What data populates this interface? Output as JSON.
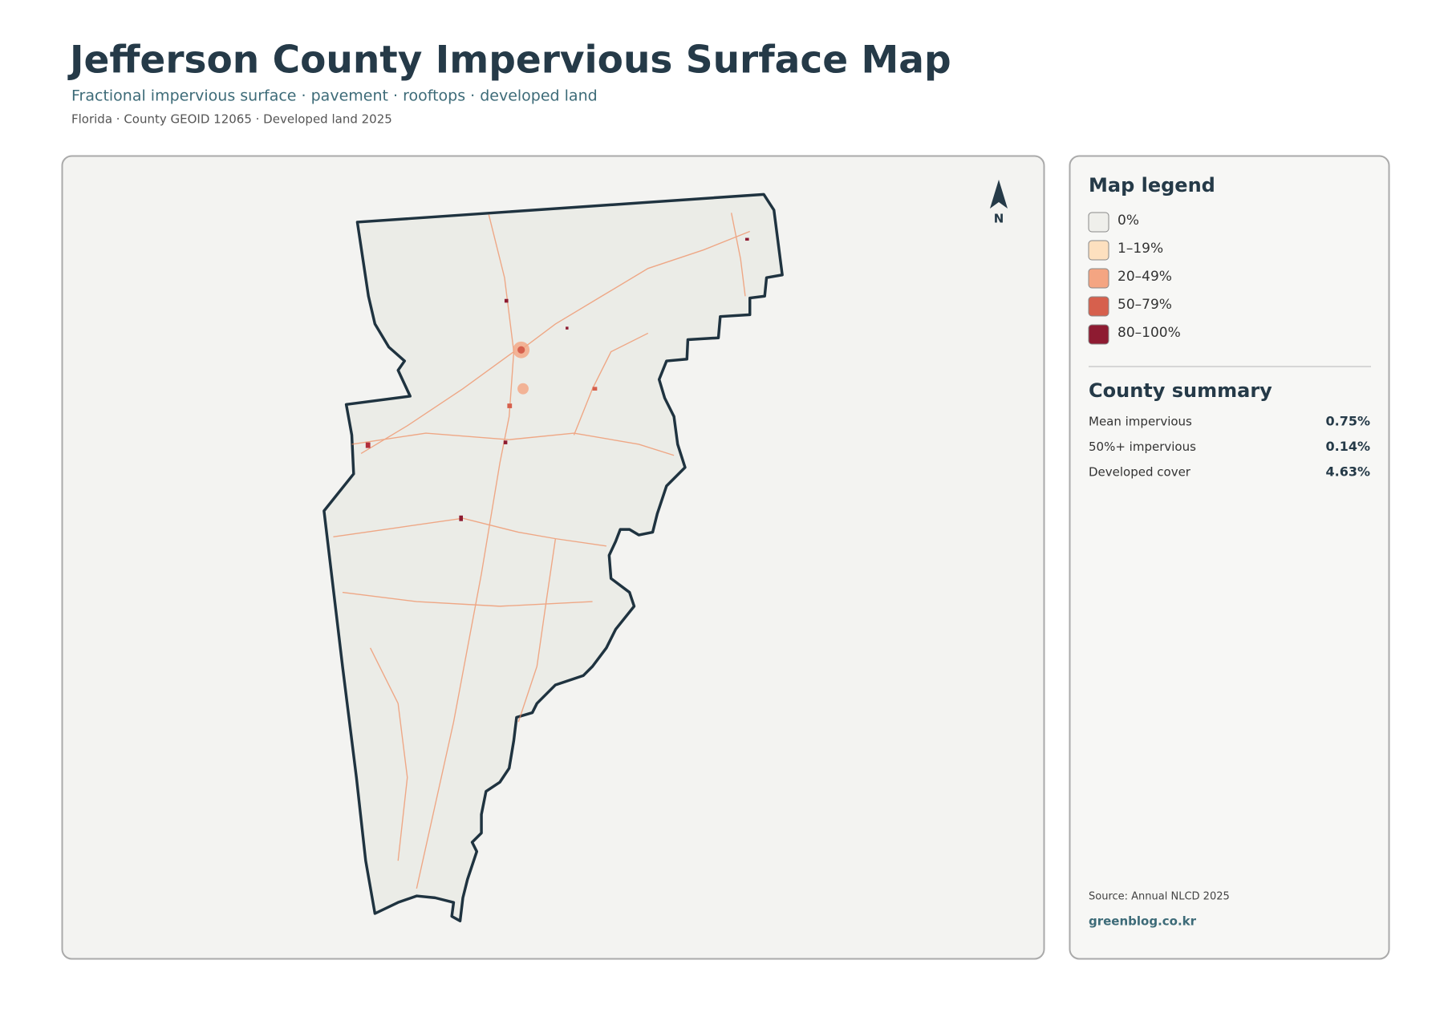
{
  "header": {
    "title": "Jefferson County Impervious Surface Map",
    "subtitle": "Fractional impervious surface · pavement · rooftops · developed land",
    "meta": "Florida · County GEOID 12065 · Developed land 2025"
  },
  "map": {
    "north_label": "N"
  },
  "legend": {
    "title": "Map legend",
    "items": [
      {
        "label": "0%",
        "color": "#efefeb"
      },
      {
        "label": "1–19%",
        "color": "#fde0bf"
      },
      {
        "label": "20–49%",
        "color": "#f4a582"
      },
      {
        "label": "50–79%",
        "color": "#d6604d"
      },
      {
        "label": "80–100%",
        "color": "#8e1b31"
      }
    ]
  },
  "summary": {
    "title": "County summary",
    "rows": [
      {
        "label": "Mean impervious",
        "value": "0.75%"
      },
      {
        "label": "50%+ impervious",
        "value": "0.14%"
      },
      {
        "label": "Developed cover",
        "value": "4.63%"
      }
    ]
  },
  "footer": {
    "source": "Source: Annual NLCD 2025",
    "brand": "greenblog.co.kr"
  }
}
